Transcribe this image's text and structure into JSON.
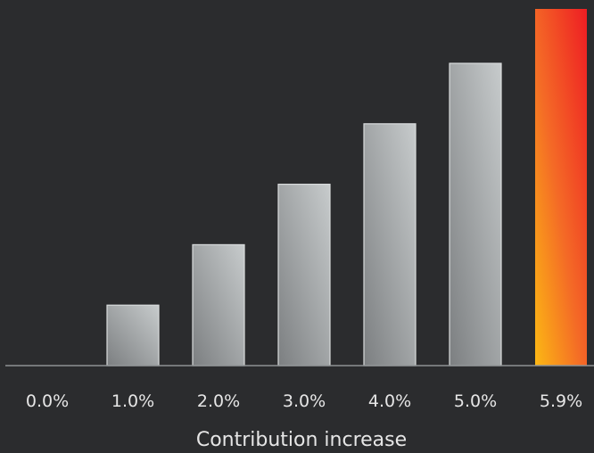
{
  "chart_data": {
    "type": "bar",
    "categories": [
      "0.0%",
      "1.0%",
      "2.0%",
      "3.0%",
      "4.0%",
      "5.0%",
      "5.9%"
    ],
    "values": [
      0,
      1.0,
      2.0,
      3.0,
      4.0,
      5.0,
      5.9
    ],
    "xlabel": "Contribution increase",
    "ylabel": "",
    "title": "",
    "ylim": [
      0,
      5.9
    ],
    "grid": false,
    "highlight_index": 6
  },
  "colors": {
    "background": "#2b2c2e",
    "bar_light": "#c7cbcc",
    "bar_dark": "#7c7f81",
    "highlight_top": "#ee1d23",
    "highlight_bottom": "#fcb814",
    "axis_line": "#8e9294",
    "label_text": "#e6e6e6"
  }
}
